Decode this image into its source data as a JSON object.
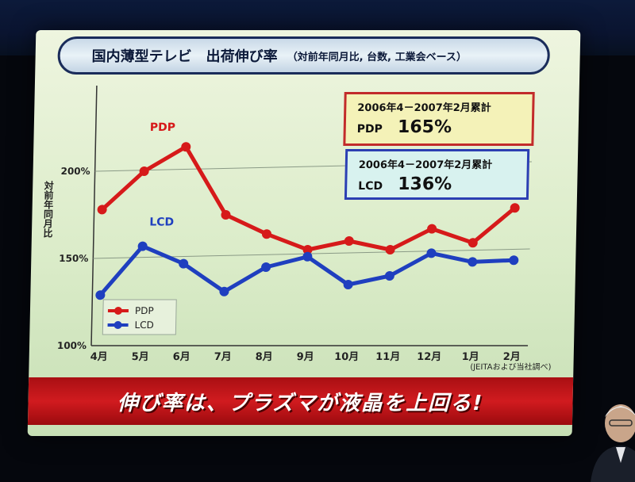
{
  "slide": {
    "title": "国内薄型テレビ　出荷伸び率",
    "subtitle": "（対前年同月比, 台数, 工業会ベース）",
    "banner": "伸び率は、プラズマが液晶を上回る!",
    "source": "(JEITAおよび当社調べ)"
  },
  "callouts": {
    "pdp": {
      "period": "2006年4－2007年2月累計",
      "label": "PDP",
      "value": "165%"
    },
    "lcd": {
      "period": "2006年4－2007年2月累計",
      "label": "LCD",
      "value": "136%"
    }
  },
  "colors": {
    "pdp": "#d61a1a",
    "lcd": "#1f3fbf",
    "grid": "#8a9a86"
  },
  "chart_data": {
    "type": "line",
    "categories": [
      "4月",
      "5月",
      "6月",
      "7月",
      "8月",
      "9月",
      "10月",
      "11月",
      "12月",
      "1月",
      "2月"
    ],
    "ylabel": "対前年同月比",
    "yticks": [
      "100%",
      "150%",
      "200%"
    ],
    "ylim": [
      100,
      240
    ],
    "series": [
      {
        "name": "PDP",
        "values": [
          178,
          200,
          214,
          175,
          164,
          155,
          160,
          155,
          167,
          159,
          179
        ]
      },
      {
        "name": "LCD",
        "values": [
          129,
          157,
          147,
          131,
          145,
          151,
          135,
          140,
          153,
          148,
          149
        ]
      }
    ],
    "series_labels": [
      "PDP",
      "LCD"
    ],
    "legend": [
      "PDP",
      "LCD"
    ],
    "legend_position": "bottom-left"
  }
}
